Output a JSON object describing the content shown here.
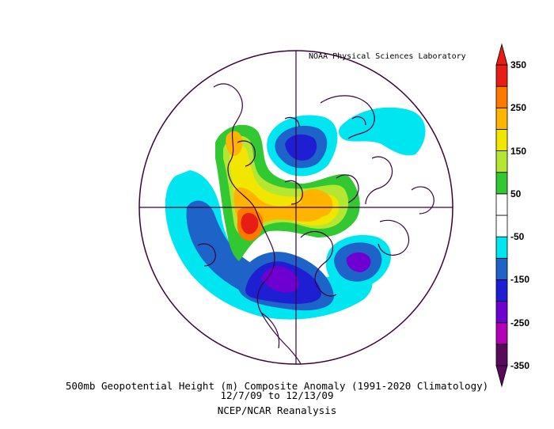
{
  "credit": "NOAA Physical Sciences Laboratory",
  "title": "500mb Geopotential Height (m) Composite Anomaly (1991-2020 Climatology)",
  "date_range": "12/7/09   to 12/13/09",
  "source": "NCEP/NCAR Reanalysis",
  "colorbar": {
    "colors": [
      "#5a0a5a",
      "#b400b4",
      "#6e00d2",
      "#1e1ed2",
      "#1e64c8",
      "#00e6f0",
      "#ffffff",
      "#ffffff",
      "#32c832",
      "#b4e632",
      "#f0e600",
      "#ffb400",
      "#ff7800",
      "#e61e14"
    ],
    "labels": [
      "350",
      "250",
      "150",
      "50",
      "-50",
      "-150",
      "-250",
      "-350"
    ]
  }
}
